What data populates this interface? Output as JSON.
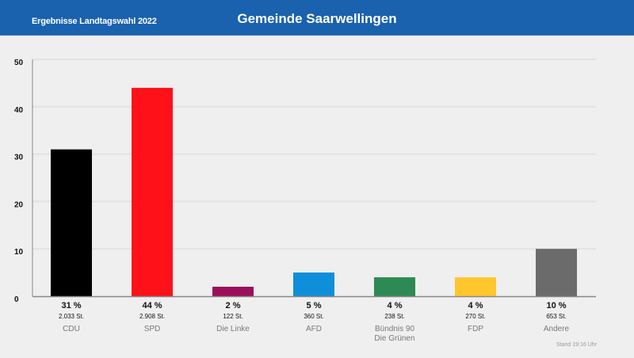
{
  "header": {
    "subtitle": "Ergebnisse Landtagswahl 2022",
    "title": "Gemeinde Saarwellingen",
    "background": "#1a61ae"
  },
  "chart_data": {
    "type": "bar",
    "title": "Gemeinde Saarwellingen",
    "ylim": [
      0,
      50
    ],
    "yticks": [
      "0",
      "10",
      "20",
      "30",
      "40",
      "50"
    ],
    "grid": true,
    "categories": [
      "CDU",
      "SPD",
      "Die Linke",
      "AFD",
      "Bündnis 90 Die Grünen",
      "FDP",
      "Andere"
    ],
    "category_lines": [
      [
        "CDU"
      ],
      [
        "SPD"
      ],
      [
        "Die Linke"
      ],
      [
        "AFD"
      ],
      [
        "Bündnis 90",
        "Die Grünen"
      ],
      [
        "FDP"
      ],
      [
        "Andere"
      ]
    ],
    "values": [
      31,
      44,
      2,
      5,
      4,
      4,
      10
    ],
    "percent_labels": [
      "31 %",
      "44 %",
      "2 %",
      "5 %",
      "4 %",
      "4 %",
      "10 %"
    ],
    "vote_labels": [
      "2.033 St.",
      "2.908 St.",
      "122 St.",
      "360 St.",
      "238 St.",
      "270 St.",
      "653 St."
    ],
    "colors": [
      "#000000",
      "#ff111a",
      "#9b0e5b",
      "#0f8fda",
      "#2d8a55",
      "#ffc62e",
      "#6b6b6b"
    ]
  },
  "footer": {
    "stand": "Stand 19:16 Uhr"
  }
}
